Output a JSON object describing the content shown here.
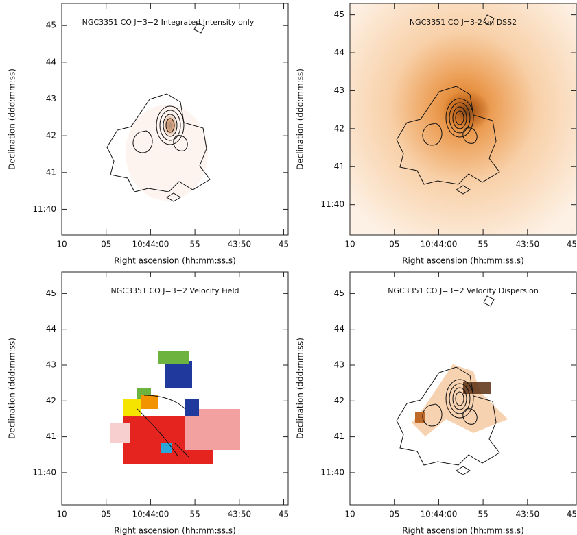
{
  "chart_data": [
    {
      "type": "image",
      "title": "NGC3351 CO J=3−2 Integrated Intensity only",
      "xlabel": "Right ascension (hh:mm:ss.s)",
      "ylabel": "Declination (ddd:mm:ss)",
      "xlim": [
        70,
        44.5
      ],
      "ylim": [
        39.3,
        45.6
      ],
      "xticks": [
        {
          "value": 70,
          "label": "10"
        },
        {
          "value": 65,
          "label": "05"
        },
        {
          "value": 60,
          "label": "10:44:00"
        },
        55,
        {
          "value": 50,
          "label": "43:50"
        },
        45
      ],
      "yticks": [
        45,
        44,
        43,
        42,
        41,
        {
          "value": 40,
          "label": "11:40"
        }
      ]
    },
    {
      "type": "image",
      "title": "NGC3351 CO J=3-2 on DSS2",
      "xlabel": "Right ascension (hh:mm:ss.s)",
      "ylabel": "Declination (ddd:mm:ss)",
      "xlim": [
        70,
        44.5
      ],
      "ylim": [
        39.2,
        45.3
      ],
      "xticks": [
        {
          "value": 70,
          "label": "10"
        },
        {
          "value": 65,
          "label": "05"
        },
        {
          "value": 60,
          "label": "10:44:00"
        },
        55,
        {
          "value": 50,
          "label": "43:50"
        },
        45
      ],
      "yticks": [
        45,
        44,
        43,
        42,
        41,
        {
          "value": 40,
          "label": "11:40"
        }
      ]
    },
    {
      "type": "image",
      "title": "NGC3351 CO J=3−2 Velocity Field",
      "xlabel": "Right ascension (hh:mm:ss.s)",
      "ylabel": "Declination (ddd:mm:ss)",
      "xlim": [
        70,
        44.5
      ],
      "ylim": [
        39.1,
        45.6
      ],
      "xticks": [
        {
          "value": 70,
          "label": "10"
        },
        {
          "value": 65,
          "label": "05"
        },
        {
          "value": 60,
          "label": "10:44:00"
        },
        55,
        {
          "value": 50,
          "label": "43:50"
        },
        45
      ],
      "yticks": [
        45,
        44,
        43,
        42,
        41,
        {
          "value": 40,
          "label": "11:40"
        }
      ]
    },
    {
      "type": "image",
      "title": "NGC3351 CO J=3−2 Velocity Dispersion",
      "xlabel": "Right ascension (hh:mm:ss.s)",
      "ylabel": "Declination (ddd:mm:ss)",
      "xlim": [
        70,
        44.5
      ],
      "ylim": [
        39.1,
        45.6
      ],
      "xticks": [
        {
          "value": 70,
          "label": "10"
        },
        {
          "value": 65,
          "label": "05"
        },
        {
          "value": 60,
          "label": "10:44:00"
        },
        55,
        {
          "value": 50,
          "label": "43:50"
        },
        45
      ],
      "yticks": [
        45,
        44,
        43,
        42,
        41,
        {
          "value": 40,
          "label": "11:40"
        }
      ]
    }
  ]
}
